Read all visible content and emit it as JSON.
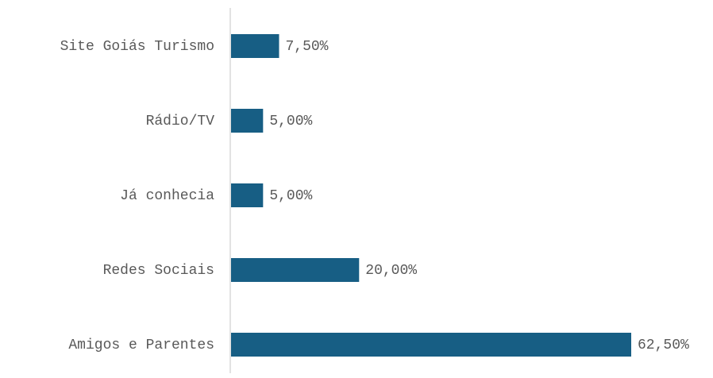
{
  "chart_data": {
    "type": "bar",
    "orientation": "horizontal",
    "categories": [
      "Site Goiás Turismo",
      "Rádio/TV",
      "Já conhecia",
      "Redes Sociais",
      "Amigos e Parentes"
    ],
    "values": [
      7.5,
      5,
      5,
      20,
      62.5
    ],
    "value_labels": [
      "7,50%",
      "5,00%",
      "5,00%",
      "20,00%",
      "62,50%"
    ],
    "color": "#175e84"
  }
}
